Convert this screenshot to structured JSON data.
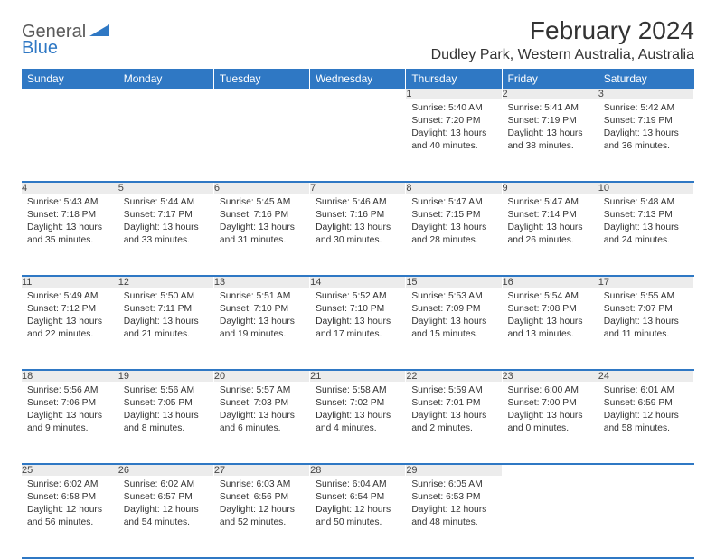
{
  "brand": {
    "part1": "General",
    "part2": "Blue"
  },
  "title": "February 2024",
  "location": "Dudley Park, Western Australia, Australia",
  "colors": {
    "header_bg": "#2f78c4",
    "header_text": "#ffffff",
    "daynum_bg": "#ececec",
    "border": "#2f78c4",
    "text": "#333333"
  },
  "dayHeaders": [
    "Sunday",
    "Monday",
    "Tuesday",
    "Wednesday",
    "Thursday",
    "Friday",
    "Saturday"
  ],
  "weeks": [
    [
      null,
      null,
      null,
      null,
      {
        "n": "1",
        "sr": "5:40 AM",
        "ss": "7:20 PM",
        "dl": "13 hours and 40 minutes."
      },
      {
        "n": "2",
        "sr": "5:41 AM",
        "ss": "7:19 PM",
        "dl": "13 hours and 38 minutes."
      },
      {
        "n": "3",
        "sr": "5:42 AM",
        "ss": "7:19 PM",
        "dl": "13 hours and 36 minutes."
      }
    ],
    [
      {
        "n": "4",
        "sr": "5:43 AM",
        "ss": "7:18 PM",
        "dl": "13 hours and 35 minutes."
      },
      {
        "n": "5",
        "sr": "5:44 AM",
        "ss": "7:17 PM",
        "dl": "13 hours and 33 minutes."
      },
      {
        "n": "6",
        "sr": "5:45 AM",
        "ss": "7:16 PM",
        "dl": "13 hours and 31 minutes."
      },
      {
        "n": "7",
        "sr": "5:46 AM",
        "ss": "7:16 PM",
        "dl": "13 hours and 30 minutes."
      },
      {
        "n": "8",
        "sr": "5:47 AM",
        "ss": "7:15 PM",
        "dl": "13 hours and 28 minutes."
      },
      {
        "n": "9",
        "sr": "5:47 AM",
        "ss": "7:14 PM",
        "dl": "13 hours and 26 minutes."
      },
      {
        "n": "10",
        "sr": "5:48 AM",
        "ss": "7:13 PM",
        "dl": "13 hours and 24 minutes."
      }
    ],
    [
      {
        "n": "11",
        "sr": "5:49 AM",
        "ss": "7:12 PM",
        "dl": "13 hours and 22 minutes."
      },
      {
        "n": "12",
        "sr": "5:50 AM",
        "ss": "7:11 PM",
        "dl": "13 hours and 21 minutes."
      },
      {
        "n": "13",
        "sr": "5:51 AM",
        "ss": "7:10 PM",
        "dl": "13 hours and 19 minutes."
      },
      {
        "n": "14",
        "sr": "5:52 AM",
        "ss": "7:10 PM",
        "dl": "13 hours and 17 minutes."
      },
      {
        "n": "15",
        "sr": "5:53 AM",
        "ss": "7:09 PM",
        "dl": "13 hours and 15 minutes."
      },
      {
        "n": "16",
        "sr": "5:54 AM",
        "ss": "7:08 PM",
        "dl": "13 hours and 13 minutes."
      },
      {
        "n": "17",
        "sr": "5:55 AM",
        "ss": "7:07 PM",
        "dl": "13 hours and 11 minutes."
      }
    ],
    [
      {
        "n": "18",
        "sr": "5:56 AM",
        "ss": "7:06 PM",
        "dl": "13 hours and 9 minutes."
      },
      {
        "n": "19",
        "sr": "5:56 AM",
        "ss": "7:05 PM",
        "dl": "13 hours and 8 minutes."
      },
      {
        "n": "20",
        "sr": "5:57 AM",
        "ss": "7:03 PM",
        "dl": "13 hours and 6 minutes."
      },
      {
        "n": "21",
        "sr": "5:58 AM",
        "ss": "7:02 PM",
        "dl": "13 hours and 4 minutes."
      },
      {
        "n": "22",
        "sr": "5:59 AM",
        "ss": "7:01 PM",
        "dl": "13 hours and 2 minutes."
      },
      {
        "n": "23",
        "sr": "6:00 AM",
        "ss": "7:00 PM",
        "dl": "13 hours and 0 minutes."
      },
      {
        "n": "24",
        "sr": "6:01 AM",
        "ss": "6:59 PM",
        "dl": "12 hours and 58 minutes."
      }
    ],
    [
      {
        "n": "25",
        "sr": "6:02 AM",
        "ss": "6:58 PM",
        "dl": "12 hours and 56 minutes."
      },
      {
        "n": "26",
        "sr": "6:02 AM",
        "ss": "6:57 PM",
        "dl": "12 hours and 54 minutes."
      },
      {
        "n": "27",
        "sr": "6:03 AM",
        "ss": "6:56 PM",
        "dl": "12 hours and 52 minutes."
      },
      {
        "n": "28",
        "sr": "6:04 AM",
        "ss": "6:54 PM",
        "dl": "12 hours and 50 minutes."
      },
      {
        "n": "29",
        "sr": "6:05 AM",
        "ss": "6:53 PM",
        "dl": "12 hours and 48 minutes."
      },
      null,
      null
    ]
  ],
  "labels": {
    "sunrise": "Sunrise:",
    "sunset": "Sunset:",
    "daylight": "Daylight:"
  }
}
